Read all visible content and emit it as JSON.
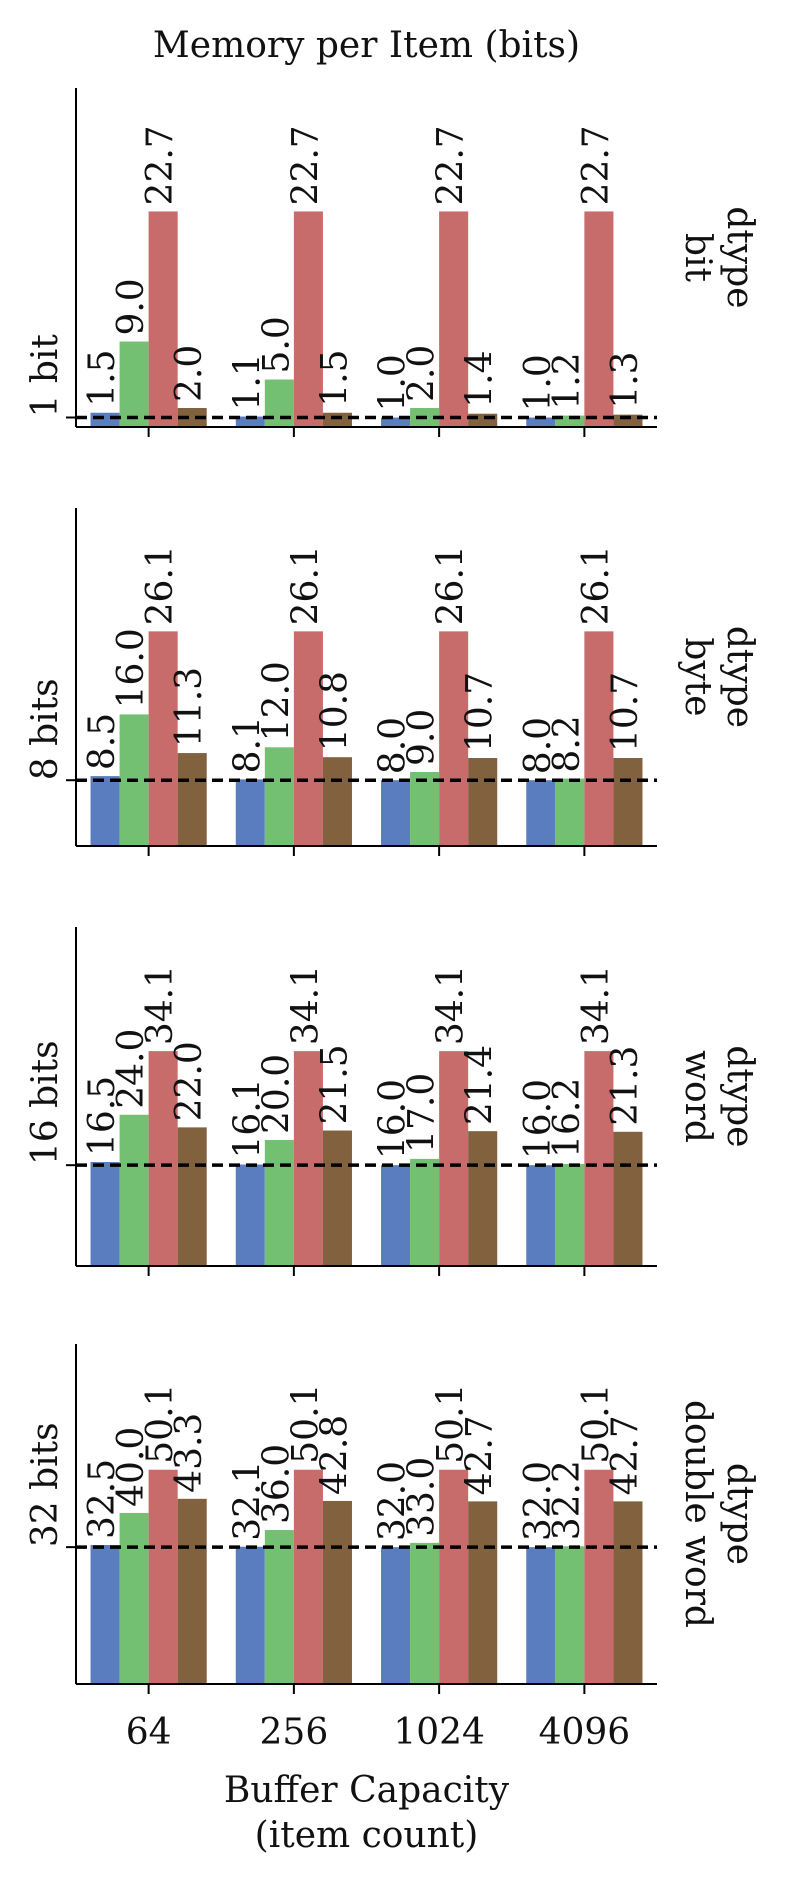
{
  "chart_data": [
    {
      "type": "bar",
      "title": "Memory per Item (bits)",
      "categories": [
        null,
        null,
        null,
        null
      ],
      "series": [
        {
          "color": "#5a7dc0",
          "values": [
            1.5,
            1.1,
            1.0,
            1.0
          ],
          "value_labels": [
            "1.5",
            "1.1",
            "1.0",
            "1.0"
          ]
        },
        {
          "color": "#73c073",
          "values": [
            9.0,
            5.0,
            2.0,
            1.2
          ],
          "value_labels": [
            "9.0",
            "5.0",
            "2.0",
            "1.2"
          ]
        },
        {
          "color": "#c86b6b",
          "values": [
            22.7,
            22.7,
            22.7,
            22.7
          ],
          "value_labels": [
            "22.7",
            "22.7",
            "22.7",
            "22.7"
          ]
        },
        {
          "color": "#82613f",
          "values": [
            2.0,
            1.5,
            1.4,
            1.3
          ],
          "value_labels": [
            "2.0",
            "1.5",
            "1.4",
            "1.3"
          ]
        }
      ],
      "ylim": [
        0,
        35.7
      ],
      "yticks": [
        {
          "value": 1,
          "label": "1 bit"
        }
      ],
      "hline": 1,
      "facet_label": [
        "dtype",
        "bit"
      ]
    },
    {
      "type": "bar",
      "categories": [
        null,
        null,
        null,
        null
      ],
      "series": [
        {
          "color": "#5a7dc0",
          "values": [
            8.5,
            8.1,
            8.0,
            8.0
          ],
          "value_labels": [
            "8.5",
            "8.1",
            "8.0",
            "8.0"
          ]
        },
        {
          "color": "#73c073",
          "values": [
            16.0,
            12.0,
            9.0,
            8.2
          ],
          "value_labels": [
            "16.0",
            "12.0",
            "9.0",
            "8.2"
          ]
        },
        {
          "color": "#c86b6b",
          "values": [
            26.1,
            26.1,
            26.1,
            26.1
          ],
          "value_labels": [
            "26.1",
            "26.1",
            "26.1",
            "26.1"
          ]
        },
        {
          "color": "#82613f",
          "values": [
            11.3,
            10.8,
            10.7,
            10.7
          ],
          "value_labels": [
            "11.3",
            "10.8",
            "10.7",
            "10.7"
          ]
        }
      ],
      "ylim": [
        0,
        41.1
      ],
      "yticks": [
        {
          "value": 8,
          "label": "8 bits"
        }
      ],
      "hline": 8,
      "facet_label": [
        "dtype",
        "byte"
      ]
    },
    {
      "type": "bar",
      "categories": [
        null,
        null,
        null,
        null
      ],
      "series": [
        {
          "color": "#5a7dc0",
          "values": [
            16.5,
            16.1,
            16.0,
            16.0
          ],
          "value_labels": [
            "16.5",
            "16.1",
            "16.0",
            "16.0"
          ]
        },
        {
          "color": "#73c073",
          "values": [
            24.0,
            20.0,
            17.0,
            16.2
          ],
          "value_labels": [
            "24.0",
            "20.0",
            "17.0",
            "16.2"
          ]
        },
        {
          "color": "#c86b6b",
          "values": [
            34.1,
            34.1,
            34.1,
            34.1
          ],
          "value_labels": [
            "34.1",
            "34.1",
            "34.1",
            "34.1"
          ]
        },
        {
          "color": "#82613f",
          "values": [
            22.0,
            21.5,
            21.4,
            21.3
          ],
          "value_labels": [
            "22.0",
            "21.5",
            "21.4",
            "21.3"
          ]
        }
      ],
      "ylim": [
        0,
        53.8
      ],
      "yticks": [
        {
          "value": 16,
          "label": "16 bits"
        }
      ],
      "hline": 16,
      "facet_label": [
        "dtype",
        "word"
      ]
    },
    {
      "type": "bar",
      "categories": [
        "64",
        "256",
        "1024",
        "4096"
      ],
      "series": [
        {
          "color": "#5a7dc0",
          "values": [
            32.5,
            32.1,
            32.0,
            32.0
          ],
          "value_labels": [
            "32.5",
            "32.1",
            "32.0",
            "32.0"
          ]
        },
        {
          "color": "#73c073",
          "values": [
            40.0,
            36.0,
            33.0,
            32.2
          ],
          "value_labels": [
            "40.0",
            "36.0",
            "33.0",
            "32.2"
          ]
        },
        {
          "color": "#c86b6b",
          "values": [
            50.1,
            50.1,
            50.1,
            50.1
          ],
          "value_labels": [
            "50.1",
            "50.1",
            "50.1",
            "50.1"
          ]
        },
        {
          "color": "#82613f",
          "values": [
            43.3,
            42.8,
            42.7,
            42.7
          ],
          "value_labels": [
            "43.3",
            "42.8",
            "42.7",
            "42.7"
          ]
        }
      ],
      "ylim": [
        0,
        79.5
      ],
      "yticks": [
        {
          "value": 32,
          "label": "32 bits"
        }
      ],
      "hline": 32,
      "facet_label": [
        "dtype",
        "double word"
      ],
      "xlabel": [
        "Buffer Capacity",
        "(item count)"
      ]
    }
  ]
}
